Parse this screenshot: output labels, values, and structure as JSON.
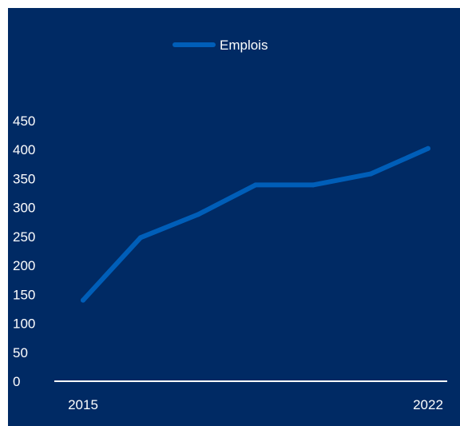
{
  "colors": {
    "background": "#002a64",
    "line": "#005eb8",
    "axis": "#ffffff",
    "text": "#ffffff"
  },
  "chart_data": {
    "type": "line",
    "title": "",
    "xlabel": "",
    "ylabel": "",
    "x": [
      2015,
      2016,
      2017,
      2018,
      2019,
      2020,
      2022
    ],
    "x_tick_labels": [
      "2015",
      "2022"
    ],
    "y_ticks": [
      "0",
      "50",
      "100",
      "150",
      "200",
      "250",
      "300",
      "350",
      "400",
      "450"
    ],
    "ylim": [
      0,
      450
    ],
    "grid": false,
    "legend_position": "top-center",
    "series": [
      {
        "name": "Emplois",
        "values": [
          140,
          248,
          288,
          339,
          339,
          358,
          402
        ]
      }
    ]
  }
}
